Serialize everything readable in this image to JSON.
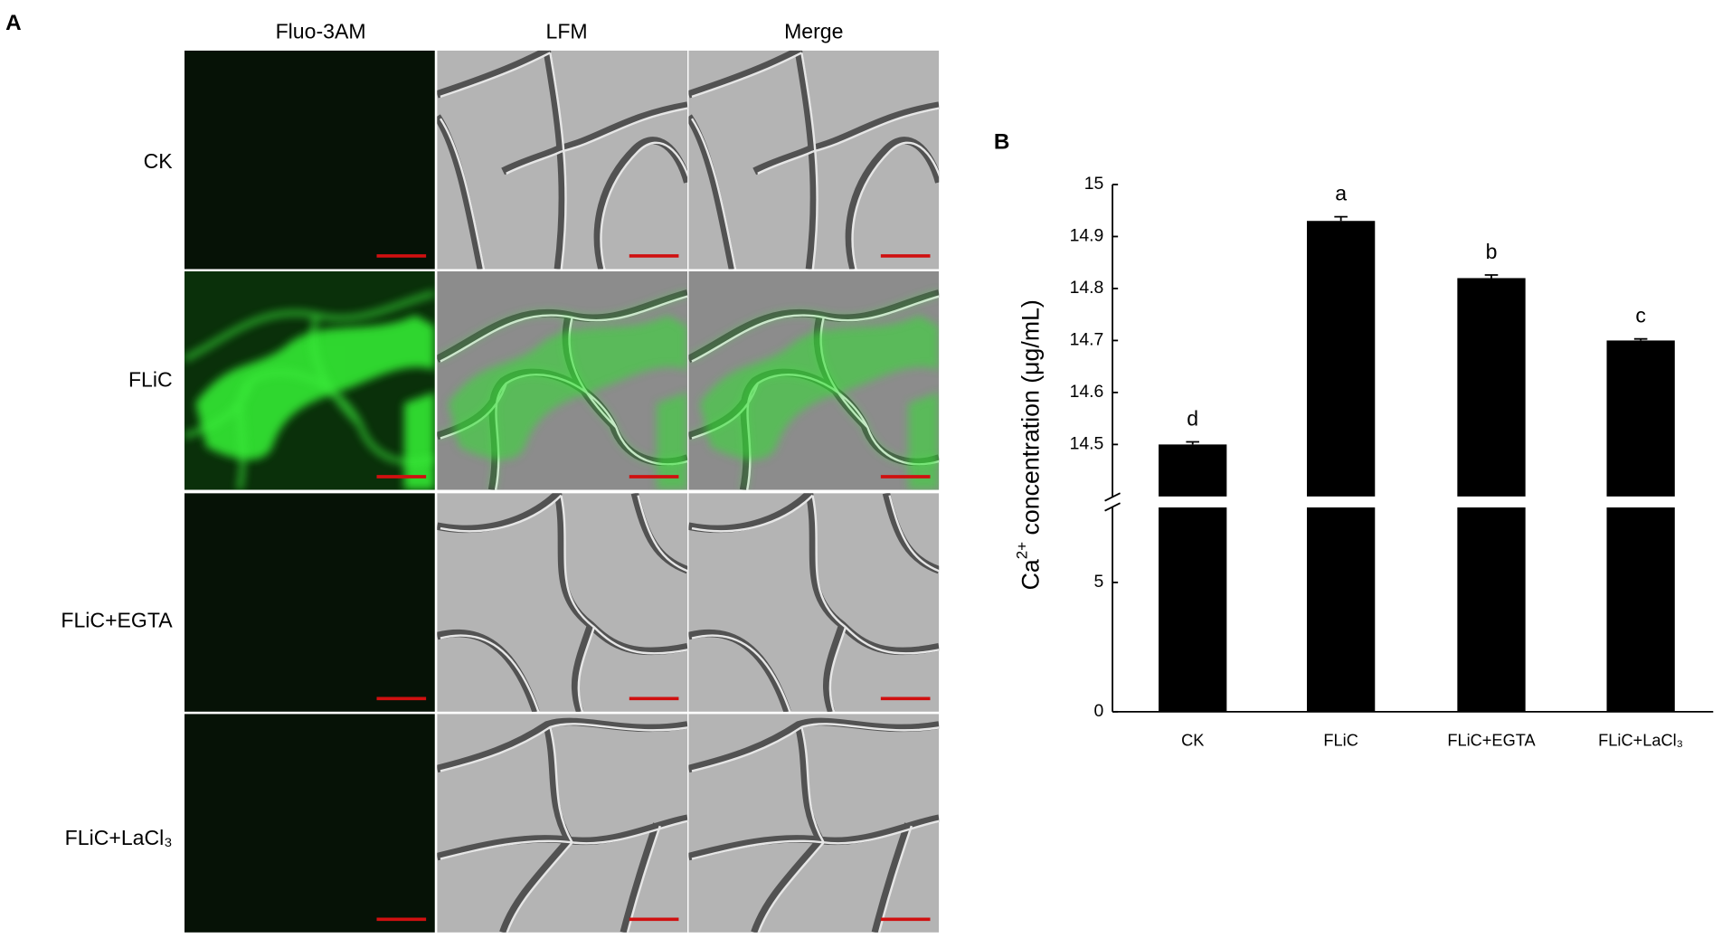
{
  "panel_a": {
    "label": "A",
    "columns": [
      "Fluo-3AM",
      "LFM",
      "Merge"
    ],
    "rows": [
      "CK",
      "FLiC",
      "FLiC+EGTA",
      "FLiC+LaCl₃"
    ]
  },
  "chart_data": {
    "type": "bar",
    "label": "B",
    "ylabel": "Ca",
    "ylabel_sup": "2+",
    "ylabel_rest": " concentration (μg/mL)",
    "categories": [
      "CK",
      "FLiC",
      "FLiC+EGTA",
      "FLiC+LaCl₃"
    ],
    "values": [
      14.5,
      14.93,
      14.82,
      14.7
    ],
    "errors": [
      0.005,
      0.008,
      0.006,
      0.003
    ],
    "annotations": [
      "d",
      "a",
      "b",
      "c"
    ],
    "color": "#000000",
    "y_segments": [
      {
        "ylim": [
          0,
          7.9
        ],
        "yticks": [
          0,
          5
        ]
      },
      {
        "ylim": [
          14.4,
          15
        ],
        "yticks": [
          14.5,
          14.6,
          14.7,
          14.8,
          14.9,
          15
        ]
      }
    ]
  }
}
